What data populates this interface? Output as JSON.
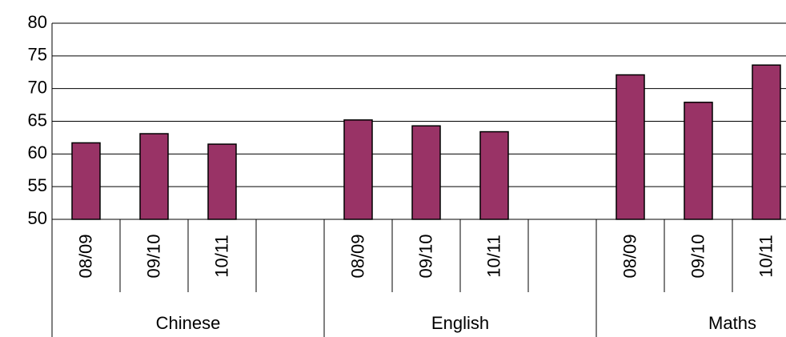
{
  "chart_data": {
    "type": "bar",
    "categories": [
      "08/09",
      "09/10",
      "10/11",
      null,
      "08/09",
      "09/10",
      "10/11",
      null,
      "08/09",
      "09/10",
      "10/11"
    ],
    "groups": [
      "Chinese",
      "English",
      "Maths"
    ],
    "values": [
      61.7,
      63.1,
      61.5,
      null,
      65.2,
      64.3,
      63.4,
      null,
      72.1,
      67.9,
      73.6
    ],
    "color": "#993366",
    "ylim": [
      50,
      80
    ],
    "yticks": [
      50,
      55,
      60,
      65,
      70,
      75,
      80
    ],
    "grid": true
  }
}
